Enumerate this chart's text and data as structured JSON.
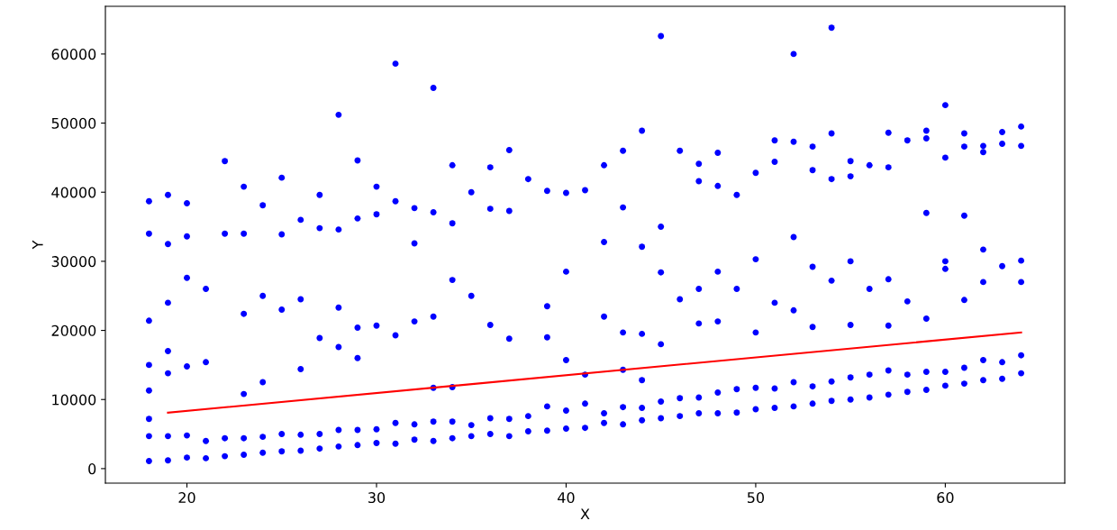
{
  "chart_data": {
    "type": "scatter",
    "xlabel": "X",
    "ylabel": "Y",
    "xlim": [
      15.7,
      66.3
    ],
    "xticks": [
      20,
      30,
      40,
      50,
      60
    ],
    "ylim": [
      -2100,
      66900
    ],
    "yticks": [
      0,
      10000,
      20000,
      30000,
      40000,
      50000,
      60000
    ],
    "grid": false,
    "series": [
      {
        "color": "#0000ff",
        "marker": "circle",
        "x": [
          18,
          18,
          18,
          19,
          19,
          20,
          20,
          21,
          21,
          22,
          22,
          23,
          23,
          24,
          24,
          25,
          25,
          26,
          26,
          27,
          27,
          28,
          28,
          29,
          29,
          30,
          30,
          31,
          31,
          32,
          32,
          33,
          33,
          34,
          34,
          35,
          35,
          36,
          36,
          37,
          37,
          38,
          38,
          39,
          39,
          40,
          40,
          41,
          41,
          42,
          42,
          43,
          43,
          44,
          44,
          45,
          45,
          46,
          46,
          47,
          47,
          48,
          48,
          49,
          49,
          50,
          50,
          51,
          51,
          52,
          52,
          53,
          53,
          54,
          54,
          55,
          55,
          56,
          56,
          57,
          57,
          58,
          58,
          59,
          59,
          60,
          60,
          61,
          61,
          62,
          62,
          63,
          63,
          64,
          64,
          18,
          18,
          18,
          19,
          19,
          19,
          20,
          20,
          21,
          21,
          23,
          23,
          24,
          24,
          25,
          26,
          26,
          27,
          28,
          28,
          29,
          29,
          30,
          31,
          32,
          33,
          33,
          34,
          34,
          35,
          36,
          37,
          39,
          39,
          40,
          40,
          41,
          42,
          43,
          43,
          44,
          44,
          45,
          45,
          46,
          47,
          47,
          48,
          48,
          49,
          50,
          50,
          51,
          52,
          52,
          53,
          53,
          54,
          55,
          55,
          56,
          57,
          57,
          58,
          59,
          59,
          60,
          60,
          61,
          61,
          62,
          62,
          63,
          64,
          64,
          18,
          18,
          19,
          19,
          20,
          20,
          22,
          22,
          23,
          23,
          24,
          25,
          25,
          26,
          27,
          27,
          28,
          28,
          29,
          29,
          30,
          30,
          31,
          31,
          32,
          32,
          33,
          33,
          34,
          34,
          35,
          36,
          36,
          37,
          37,
          38,
          39,
          40,
          41,
          42,
          42,
          43,
          43,
          44,
          44,
          45,
          45,
          46,
          47,
          47,
          48,
          48,
          49,
          50,
          51,
          51,
          52,
          52,
          53,
          53,
          54,
          54,
          54,
          55,
          55,
          56,
          57,
          57,
          58,
          59,
          59,
          60,
          60,
          61,
          61,
          62,
          62,
          63,
          63,
          64,
          64
        ],
        "values": [
          1100,
          4700,
          7200,
          1200,
          4700,
          1600,
          4800,
          1500,
          4000,
          1800,
          4400,
          2000,
          4400,
          2300,
          4600,
          2500,
          5000,
          2600,
          4900,
          2900,
          5000,
          3200,
          5600,
          3400,
          5600,
          3700,
          5700,
          3600,
          6600,
          4200,
          6400,
          4000,
          6800,
          4400,
          6800,
          4700,
          6300,
          5000,
          7300,
          4700,
          7200,
          5400,
          7600,
          5500,
          9000,
          5800,
          8400,
          5900,
          9400,
          6600,
          8000,
          6400,
          8900,
          7000,
          8800,
          7300,
          9700,
          7600,
          10200,
          8000,
          10300,
          8000,
          11000,
          8100,
          11500,
          8600,
          11700,
          8800,
          11600,
          9000,
          12500,
          9400,
          11900,
          9800,
          12600,
          10000,
          13200,
          10300,
          13600,
          10700,
          14200,
          11100,
          13600,
          11400,
          14000,
          12000,
          14000,
          12300,
          14600,
          12800,
          15700,
          13000,
          15400,
          13800,
          16400,
          21400,
          11300,
          15000,
          24000,
          13800,
          17000,
          27600,
          14800,
          26000,
          15400,
          22400,
          10800,
          25000,
          12500,
          23000,
          24500,
          14400,
          18900,
          23300,
          17600,
          20400,
          16000,
          20700,
          19300,
          21300,
          22000,
          11700,
          27300,
          11800,
          25000,
          20800,
          18800,
          23500,
          19000,
          28500,
          15700,
          13600,
          22000,
          19700,
          14300,
          12800,
          19500,
          28400,
          18000,
          24500,
          26000,
          21000,
          28500,
          21300,
          26000,
          30300,
          19700,
          24000,
          33500,
          22900,
          29200,
          20500,
          27200,
          30000,
          20800,
          26000,
          27400,
          20700,
          24200,
          37000,
          21700,
          30000,
          28900,
          36600,
          24400,
          31700,
          27000,
          29300,
          30100,
          27000,
          38700,
          34000,
          39600,
          32500,
          38400,
          33600,
          44500,
          34000,
          40800,
          34000,
          38100,
          42100,
          33900,
          36000,
          39600,
          34800,
          51200,
          34600,
          44600,
          36200,
          40800,
          36800,
          58600,
          38700,
          32600,
          37700,
          55100,
          37100,
          43900,
          35500,
          40000,
          43600,
          37600,
          46100,
          37300,
          41900,
          40200,
          39900,
          40300,
          43900,
          32800,
          46000,
          37800,
          48900,
          32100,
          62600,
          35000,
          46000,
          44100,
          41600,
          45700,
          40900,
          39600,
          42800,
          47500,
          44400,
          60000,
          47300,
          46600,
          43200,
          63800,
          48500,
          41900,
          44500,
          42300,
          43900,
          48600,
          43600,
          47500,
          48900,
          47800,
          52600,
          45000,
          48500,
          46600,
          46700,
          45800,
          48700,
          47000,
          49500,
          46700
        ]
      },
      {
        "type": "line",
        "color": "#ff0000",
        "line_style": "solid",
        "x": [
          19,
          64
        ],
        "values": [
          8100,
          19700
        ]
      }
    ]
  }
}
